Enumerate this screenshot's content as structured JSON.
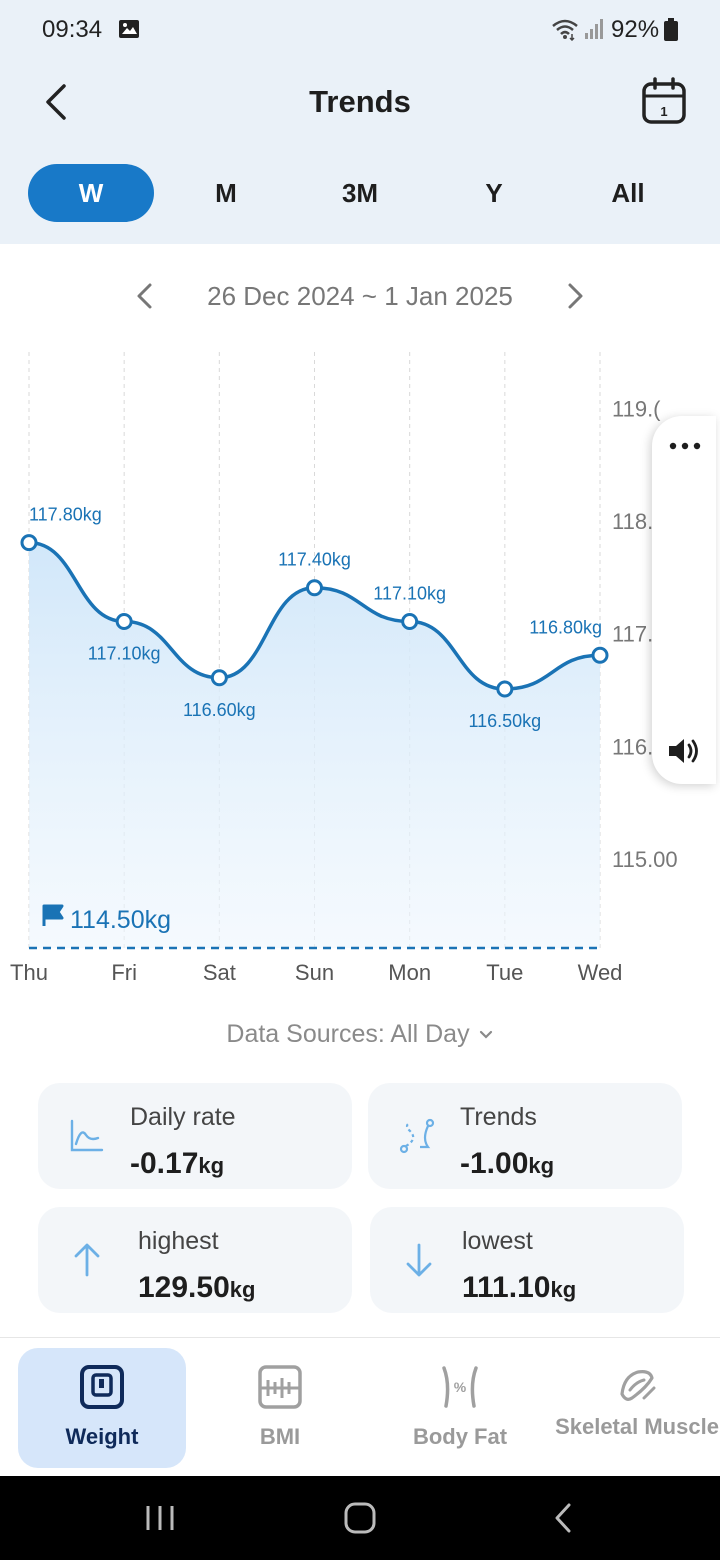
{
  "status_bar": {
    "time": "09:34",
    "battery": "92%"
  },
  "header": {
    "title": "Trends"
  },
  "period_tabs": [
    {
      "label": "W",
      "active": true
    },
    {
      "label": "M",
      "active": false
    },
    {
      "label": "3M",
      "active": false
    },
    {
      "label": "Y",
      "active": false
    },
    {
      "label": "All",
      "active": false
    }
  ],
  "date_range": "26 Dec 2024 ~ 1 Jan 2025",
  "chart_data": {
    "type": "line",
    "categories": [
      "Thu",
      "Fri",
      "Sat",
      "Sun",
      "Mon",
      "Tue",
      "Wed"
    ],
    "series": [
      {
        "values": [
          117.8,
          117.1,
          116.6,
          117.4,
          117.1,
          116.5,
          116.8
        ]
      }
    ],
    "data_labels": [
      "117.80kg",
      "117.10kg",
      "116.60kg",
      "117.40kg",
      "117.10kg",
      "116.50kg",
      "116.80kg"
    ],
    "y_tick_labels": [
      "119.(",
      "118.",
      "117.",
      "116.00",
      "115.00"
    ],
    "y_ticks": [
      119,
      118,
      117,
      116,
      115
    ],
    "goal": {
      "value": 114.5,
      "label": "114.50kg"
    },
    "ylim": [
      114.2,
      119.6
    ],
    "line_color": "#1a73b5",
    "fill_color": "#d8ecfb"
  },
  "data_sources": "Data Sources: All Day",
  "stats": [
    {
      "label": "Daily rate",
      "value": "-0.17",
      "unit": "kg",
      "icon": "daily-rate-chart-icon"
    },
    {
      "label": "Trends",
      "value": "-1.00",
      "unit": "kg",
      "icon": "trend-path-icon"
    },
    {
      "label": "highest",
      "value": "129.50",
      "unit": "kg",
      "icon": "arrow-up-icon"
    },
    {
      "label": "lowest",
      "value": "111.10",
      "unit": "kg",
      "icon": "arrow-down-icon"
    }
  ],
  "bottom_nav": [
    {
      "label": "Weight",
      "active": true
    },
    {
      "label": "BMI",
      "active": false
    },
    {
      "label": "Body Fat",
      "active": false
    },
    {
      "label": "Skeletal Muscle",
      "active": false
    }
  ],
  "colors": {
    "accent": "#1879c8",
    "header_bg": "#eaf1f8",
    "card_bg": "#f3f6f9",
    "icon_light_blue": "#6cb0e6"
  }
}
